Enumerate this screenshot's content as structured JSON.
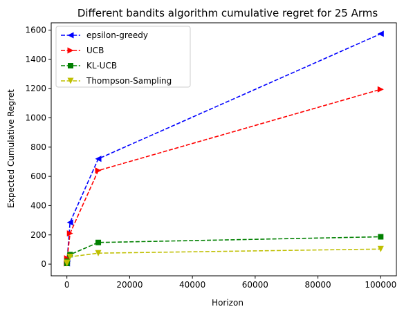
{
  "chart_data": {
    "type": "line",
    "title": "Different bandits algorithm cumulative regret for 25 Arms",
    "xlabel": "Horizon",
    "ylabel": "Expected Cumulative Regret",
    "xlim": [
      -5000,
      105000
    ],
    "ylim": [
      -80,
      1650
    ],
    "xticks": [
      0,
      20000,
      40000,
      60000,
      80000,
      100000
    ],
    "xtick_labels": [
      "0",
      "20000",
      "40000",
      "60000",
      "80000",
      "100000"
    ],
    "yticks": [
      0,
      200,
      400,
      600,
      800,
      1000,
      1200,
      1400,
      1600
    ],
    "ytick_labels": [
      "0",
      "200",
      "400",
      "600",
      "800",
      "1000",
      "1200",
      "1400",
      "1600"
    ],
    "x": [
      10,
      100,
      1000,
      10000,
      100000
    ],
    "grid": false,
    "legend_position": "top-left",
    "series": [
      {
        "name": "epsilon-greedy",
        "color": "#0000ff",
        "marker": "triangle-left",
        "values": [
          5,
          35,
          285,
          720,
          1575
        ]
      },
      {
        "name": "UCB",
        "color": "#ff0000",
        "marker": "triangle-right",
        "values": [
          5,
          40,
          210,
          640,
          1195
        ]
      },
      {
        "name": "KL-UCB",
        "color": "#008000",
        "marker": "square",
        "values": [
          5,
          20,
          65,
          148,
          187
        ]
      },
      {
        "name": "Thompson-Sampling",
        "color": "#bfbf00",
        "marker": "triangle-down",
        "values": [
          5,
          10,
          50,
          75,
          103
        ]
      }
    ]
  }
}
